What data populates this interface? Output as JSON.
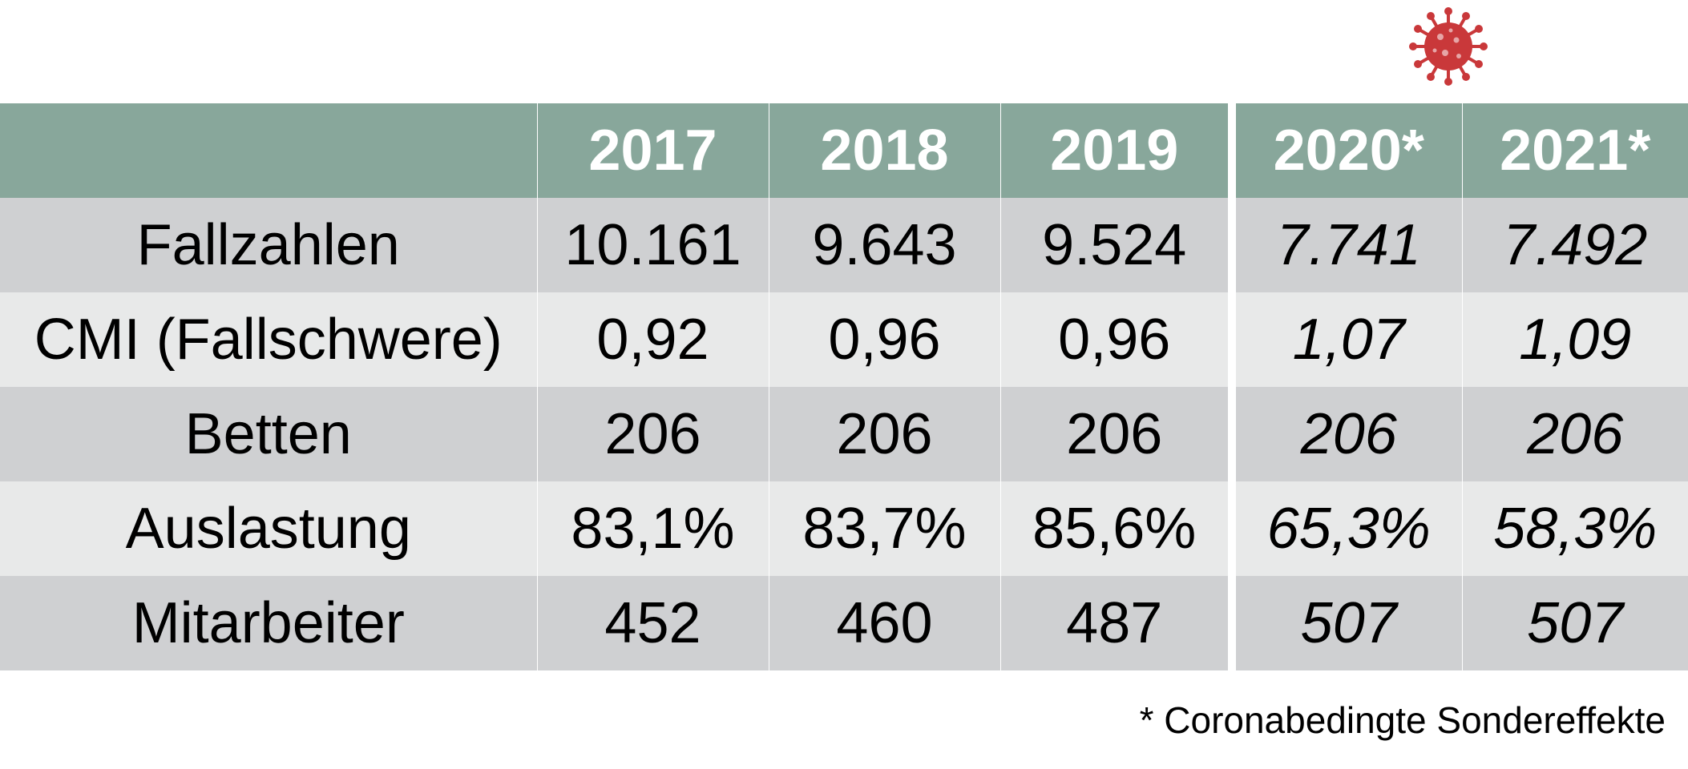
{
  "header": {
    "corner": "",
    "years": [
      "2017",
      "2018",
      "2019",
      "2020*",
      "2021*"
    ]
  },
  "rows": [
    {
      "label": "Fallzahlen",
      "values": [
        "10.161",
        "9.643",
        "9.524",
        "7.741",
        "7.492"
      ]
    },
    {
      "label": "CMI (Fallschwere)",
      "values": [
        "0,92",
        "0,96",
        "0,96",
        "1,07",
        "1,09"
      ]
    },
    {
      "label": "Betten",
      "values": [
        "206",
        "206",
        "206",
        "206",
        "206"
      ]
    },
    {
      "label": "Auslastung",
      "values": [
        "83,1%",
        "83,7%",
        "85,6%",
        "65,3%",
        "58,3%"
      ]
    },
    {
      "label": "Mitarbeiter",
      "values": [
        "452",
        "460",
        "487",
        "507",
        "507"
      ]
    }
  ],
  "footnote": "* Coronabedingte Sondereffekte",
  "icon": "coronavirus-icon",
  "colors": {
    "header_bg": "#88a79b",
    "row_dark": "#cfd0d2",
    "row_light": "#e8e9e9",
    "virus": "#c9383a"
  }
}
